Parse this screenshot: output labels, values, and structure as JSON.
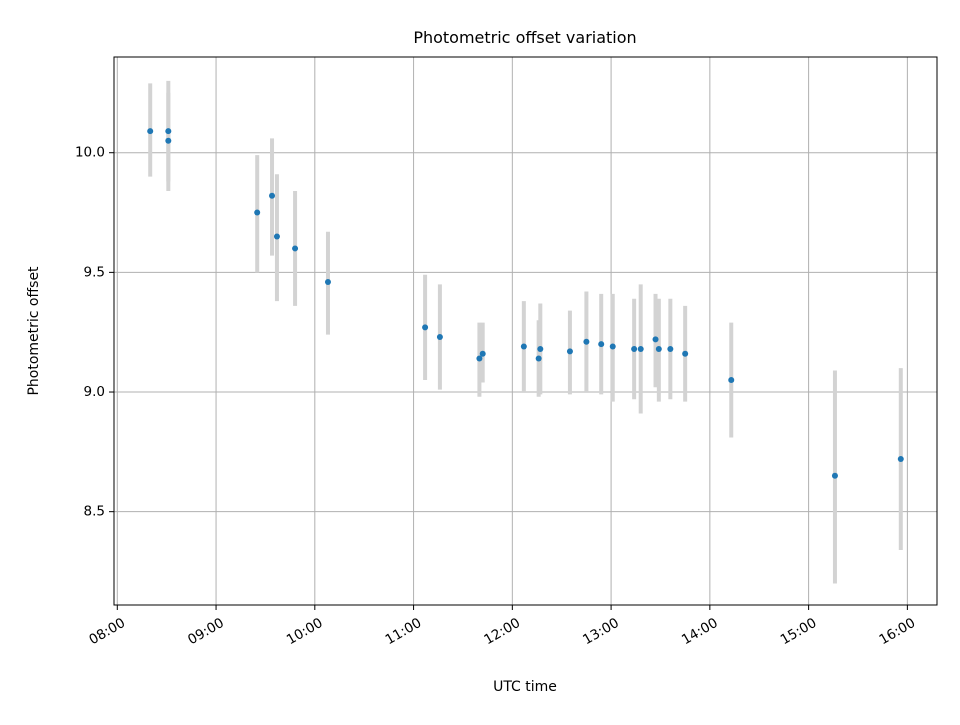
{
  "chart_data": {
    "type": "scatter",
    "title": "Photometric offset variation",
    "xlabel": "UTC time",
    "ylabel": "Photometric offset",
    "xlim": [
      "07:58",
      "16:18"
    ],
    "ylim": [
      8.11,
      10.4
    ],
    "grid": true,
    "x_ticks": [
      "08:00",
      "09:00",
      "10:00",
      "11:00",
      "12:00",
      "13:00",
      "14:00",
      "15:00",
      "16:00"
    ],
    "y_ticks": [
      "8.5",
      "9.0",
      "9.5",
      "10.0"
    ],
    "colors": {
      "marker": "#1f77b4",
      "errorbar": "#d3d3d3",
      "grid": "#b0b0b0",
      "axes": "#000000"
    },
    "series": [
      {
        "points": [
          {
            "x": "08:20",
            "y": 10.09,
            "err": [
              9.9,
              10.29
            ]
          },
          {
            "x": "08:31",
            "y": 10.09,
            "err": [
              9.88,
              10.3
            ]
          },
          {
            "x": "08:31",
            "y": 10.05,
            "err": [
              9.84,
              10.25
            ]
          },
          {
            "x": "09:25",
            "y": 9.75,
            "err": [
              9.5,
              9.99
            ]
          },
          {
            "x": "09:34",
            "y": 9.82,
            "err": [
              9.57,
              10.06
            ]
          },
          {
            "x": "09:37",
            "y": 9.65,
            "err": [
              9.38,
              9.91
            ]
          },
          {
            "x": "09:48",
            "y": 9.6,
            "err": [
              9.36,
              9.84
            ]
          },
          {
            "x": "10:08",
            "y": 9.46,
            "err": [
              9.24,
              9.67
            ]
          },
          {
            "x": "11:07",
            "y": 9.27,
            "err": [
              9.05,
              9.49
            ]
          },
          {
            "x": "11:16",
            "y": 9.23,
            "err": [
              9.01,
              9.45
            ]
          },
          {
            "x": "11:40",
            "y": 9.14,
            "err": [
              8.98,
              9.29
            ]
          },
          {
            "x": "11:42",
            "y": 9.16,
            "err": [
              9.04,
              9.29
            ]
          },
          {
            "x": "12:07",
            "y": 9.19,
            "err": [
              9.0,
              9.38
            ]
          },
          {
            "x": "12:16",
            "y": 9.14,
            "err": [
              8.98,
              9.3
            ]
          },
          {
            "x": "12:17",
            "y": 9.18,
            "err": [
              8.99,
              9.37
            ]
          },
          {
            "x": "12:35",
            "y": 9.17,
            "err": [
              8.99,
              9.34
            ]
          },
          {
            "x": "12:45",
            "y": 9.21,
            "err": [
              9.0,
              9.42
            ]
          },
          {
            "x": "12:54",
            "y": 9.2,
            "err": [
              8.99,
              9.41
            ]
          },
          {
            "x": "13:01",
            "y": 9.19,
            "err": [
              8.96,
              9.41
            ]
          },
          {
            "x": "13:14",
            "y": 9.18,
            "err": [
              8.97,
              9.39
            ]
          },
          {
            "x": "13:18",
            "y": 9.18,
            "err": [
              8.91,
              9.45
            ]
          },
          {
            "x": "13:27",
            "y": 9.22,
            "err": [
              9.02,
              9.41
            ]
          },
          {
            "x": "13:29",
            "y": 9.18,
            "err": [
              8.96,
              9.39
            ]
          },
          {
            "x": "13:36",
            "y": 9.18,
            "err": [
              8.97,
              9.39
            ]
          },
          {
            "x": "13:45",
            "y": 9.16,
            "err": [
              8.96,
              9.36
            ]
          },
          {
            "x": "14:13",
            "y": 9.05,
            "err": [
              8.81,
              9.29
            ]
          },
          {
            "x": "15:16",
            "y": 8.65,
            "err": [
              8.2,
              9.09
            ]
          },
          {
            "x": "15:56",
            "y": 8.72,
            "err": [
              8.34,
              9.1
            ]
          }
        ]
      }
    ]
  }
}
